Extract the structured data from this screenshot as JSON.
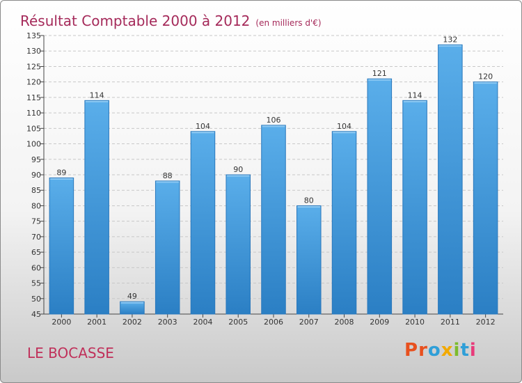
{
  "title": "Résultat Comptable 2000 à 2012",
  "subtitle": "(en milliers d'€)",
  "commune": "LE BOCASSE",
  "brand": {
    "text": "Proxiti",
    "letters": [
      "P",
      "r",
      "o",
      "x",
      "i",
      "t",
      "i"
    ],
    "colors": [
      "#e8501e",
      "#e8501e",
      "#2f9fd8",
      "#f2a900",
      "#7dbb2d",
      "#2f9fd8",
      "#e83a7a"
    ]
  },
  "chart_data": {
    "type": "bar",
    "categories": [
      "2000",
      "2001",
      "2002",
      "2003",
      "2004",
      "2005",
      "2006",
      "2007",
      "2008",
      "2009",
      "2010",
      "2011",
      "2012"
    ],
    "values": [
      89,
      114,
      49,
      88,
      104,
      90,
      106,
      80,
      104,
      121,
      114,
      132,
      120
    ],
    "ylim": [
      45,
      135
    ],
    "yticks": [
      45,
      50,
      55,
      60,
      65,
      70,
      75,
      80,
      85,
      90,
      95,
      100,
      105,
      110,
      115,
      120,
      125,
      130,
      135
    ],
    "grid": true,
    "bar_color": "#4a9fe0",
    "xlabel": "",
    "ylabel": ""
  }
}
